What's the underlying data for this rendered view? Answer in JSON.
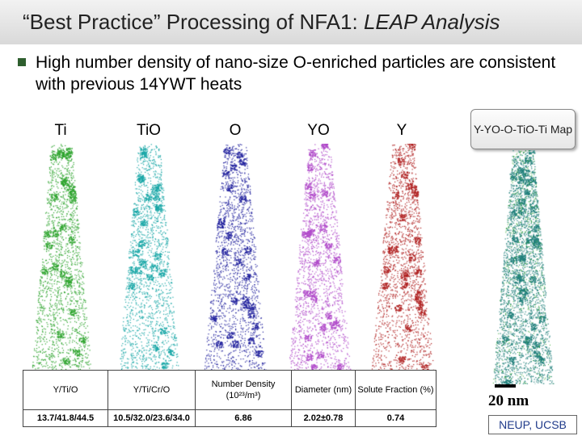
{
  "slide": {
    "title_main": "“Best Practice” Processing of NFA1: ",
    "title_emphasis": "LEAP Analysis",
    "bullet": "High number density of nano-size O-enriched particles are consistent with previous 14YWT heats"
  },
  "maps": [
    {
      "label": "Ti",
      "color": "#2ea42e"
    },
    {
      "label": "TiO",
      "color": "#1aa7a7"
    },
    {
      "label": "O",
      "color": "#23239e"
    },
    {
      "label": "YO",
      "color": "#b04ac9"
    },
    {
      "label": "Y",
      "color": "#b02222"
    }
  ],
  "combined_map": {
    "label": "Y-YO-O-TiO-Ti Map",
    "color": "#1f7f7a"
  },
  "table": {
    "headers": [
      "Y/Ti/O",
      "Y/Ti/Cr/O",
      "Number Density (10²³/m³)",
      "Diameter (nm)",
      "Solute Fraction (%)"
    ],
    "values": [
      "13.7/41.8/44.5",
      "10.5/32.0/23.6/34.0",
      "6.86",
      "2.02±0.78",
      "0.74"
    ]
  },
  "scale": {
    "label": "20 nm"
  },
  "credit": "NEUP, UCSB"
}
